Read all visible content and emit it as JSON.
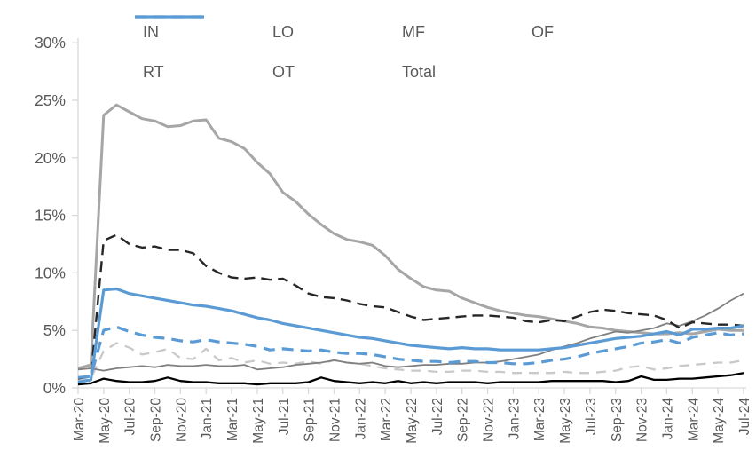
{
  "chart_data": {
    "type": "line",
    "title": "",
    "xlabel": "",
    "ylabel": "",
    "ylim": [
      0,
      30
    ],
    "grid": false,
    "legend_position": "top",
    "axis_color": "#D9D9D9",
    "tick_label_color": "#595959",
    "y_ticks": [
      "0%",
      "5%",
      "10%",
      "15%",
      "20%",
      "25%",
      "30%"
    ],
    "x_tick_labels": [
      "Mar-20",
      "May-20",
      "Jul-20",
      "Sep-20",
      "Nov-20",
      "Jan-21",
      "Mar-21",
      "May-21",
      "Jul-21",
      "Sep-21",
      "Nov-21",
      "Jan-22",
      "Mar-22",
      "May-22",
      "Jul-22",
      "Sep-22",
      "Nov-22",
      "Jan-23",
      "Mar-23",
      "May-23",
      "Jul-23",
      "Sep-23",
      "Nov-23",
      "Jan-24",
      "Mar-24",
      "May-24",
      "Jul-24"
    ],
    "label_every": 2,
    "x": [
      "Mar-20",
      "Apr-20",
      "May-20",
      "Jun-20",
      "Jul-20",
      "Aug-20",
      "Sep-20",
      "Oct-20",
      "Nov-20",
      "Dec-20",
      "Jan-21",
      "Feb-21",
      "Mar-21",
      "Apr-21",
      "May-21",
      "Jun-21",
      "Jul-21",
      "Aug-21",
      "Sep-21",
      "Oct-21",
      "Nov-21",
      "Dec-21",
      "Jan-22",
      "Feb-22",
      "Mar-22",
      "Apr-22",
      "May-22",
      "Jun-22",
      "Jul-22",
      "Aug-22",
      "Sep-22",
      "Oct-22",
      "Nov-22",
      "Dec-22",
      "Jan-23",
      "Feb-23",
      "Mar-23",
      "Apr-23",
      "May-23",
      "Jun-23",
      "Jul-23",
      "Aug-23",
      "Sep-23",
      "Oct-23",
      "Nov-23",
      "Dec-23",
      "Jan-24",
      "Feb-24",
      "Mar-24",
      "Apr-24",
      "May-24",
      "Jun-24",
      "Jul-24"
    ],
    "series": [
      {
        "name": "IN",
        "color": "#000000",
        "style": "solid",
        "width": 2.3,
        "dash": "",
        "values": [
          0.3,
          0.4,
          0.8,
          0.6,
          0.5,
          0.5,
          0.6,
          0.9,
          0.6,
          0.5,
          0.5,
          0.4,
          0.4,
          0.4,
          0.3,
          0.4,
          0.4,
          0.4,
          0.5,
          0.9,
          0.6,
          0.5,
          0.4,
          0.5,
          0.4,
          0.6,
          0.4,
          0.5,
          0.4,
          0.5,
          0.5,
          0.5,
          0.4,
          0.5,
          0.5,
          0.5,
          0.5,
          0.6,
          0.6,
          0.6,
          0.6,
          0.6,
          0.5,
          0.6,
          1.0,
          0.7,
          0.7,
          0.8,
          0.8,
          0.9,
          1.0,
          1.1,
          1.3
        ]
      },
      {
        "name": "LO",
        "color": "#A6A6A6",
        "style": "solid",
        "width": 3,
        "dash": "",
        "values": [
          1.7,
          2.0,
          23.7,
          24.6,
          24.0,
          23.4,
          23.2,
          22.7,
          22.8,
          23.2,
          23.3,
          21.7,
          21.4,
          20.8,
          19.6,
          18.6,
          17.0,
          16.2,
          15.1,
          14.2,
          13.4,
          12.9,
          12.7,
          12.4,
          11.5,
          10.3,
          9.5,
          8.8,
          8.5,
          8.4,
          7.8,
          7.4,
          7.0,
          6.7,
          6.5,
          6.3,
          6.2,
          6.0,
          5.8,
          5.6,
          5.3,
          5.2,
          5.0,
          4.9,
          4.8,
          4.7,
          4.7,
          4.8,
          4.7,
          4.9,
          5.1,
          5.0,
          5.0
        ]
      },
      {
        "name": "MF",
        "color": "#C9C9C9",
        "style": "dashed",
        "width": 2.3,
        "dash": "11 8",
        "values": [
          0.6,
          0.8,
          3.2,
          3.9,
          3.5,
          2.9,
          3.1,
          3.4,
          2.6,
          2.5,
          3.4,
          2.4,
          2.6,
          2.2,
          2.4,
          2.1,
          2.2,
          2.1,
          2.3,
          2.1,
          2.4,
          2.2,
          2.1,
          1.9,
          1.7,
          1.6,
          1.5,
          1.5,
          1.4,
          1.4,
          1.5,
          1.5,
          1.4,
          1.4,
          1.3,
          1.3,
          1.3,
          1.3,
          1.4,
          1.3,
          1.3,
          1.4,
          1.5,
          1.8,
          1.9,
          1.6,
          1.7,
          1.9,
          2.0,
          2.1,
          2.2,
          2.2,
          2.4
        ]
      },
      {
        "name": "OF",
        "color": "#7F7F7F",
        "style": "solid",
        "width": 1.8,
        "dash": "",
        "values": [
          1.6,
          1.7,
          1.5,
          1.7,
          1.8,
          1.9,
          1.8,
          2.0,
          1.9,
          1.9,
          2.0,
          1.9,
          1.9,
          2.0,
          1.6,
          1.7,
          1.8,
          2.0,
          2.1,
          2.2,
          2.4,
          2.2,
          2.1,
          2.2,
          1.9,
          1.8,
          1.9,
          2.0,
          2.0,
          2.1,
          2.1,
          2.2,
          2.2,
          2.3,
          2.5,
          2.7,
          2.9,
          3.3,
          3.6,
          3.9,
          4.3,
          4.6,
          4.9,
          4.8,
          5.0,
          5.2,
          5.6,
          5.4,
          5.8,
          6.3,
          6.9,
          7.6,
          8.2
        ]
      },
      {
        "name": "RT",
        "color": "#262626",
        "style": "dashed",
        "width": 2.4,
        "dash": "12 7",
        "values": [
          0.8,
          1.0,
          12.8,
          13.3,
          12.5,
          12.2,
          12.3,
          12.0,
          12.0,
          11.7,
          10.6,
          10.0,
          9.6,
          9.5,
          9.6,
          9.4,
          9.5,
          8.9,
          8.2,
          7.9,
          7.8,
          7.6,
          7.3,
          7.1,
          7.0,
          6.6,
          6.2,
          5.9,
          6.0,
          6.1,
          6.2,
          6.3,
          6.3,
          6.2,
          6.1,
          5.8,
          5.7,
          5.9,
          5.8,
          6.2,
          6.6,
          6.8,
          6.7,
          6.5,
          6.4,
          6.3,
          5.9,
          5.2,
          5.7,
          5.6,
          5.5,
          5.5,
          5.4
        ]
      },
      {
        "name": "OT",
        "color": "#5B9BD5",
        "style": "dashed",
        "width": 3.2,
        "dash": "13 8",
        "values": [
          0.9,
          1.0,
          5.0,
          5.3,
          4.9,
          4.6,
          4.4,
          4.3,
          4.1,
          4.0,
          4.2,
          4.0,
          3.9,
          3.8,
          3.6,
          3.3,
          3.4,
          3.3,
          3.2,
          3.3,
          3.1,
          3.0,
          3.0,
          2.9,
          2.7,
          2.5,
          2.4,
          2.3,
          2.3,
          2.2,
          2.3,
          2.3,
          2.2,
          2.2,
          2.1,
          2.1,
          2.2,
          2.4,
          2.5,
          2.7,
          3.0,
          3.2,
          3.4,
          3.6,
          3.9,
          4.0,
          4.2,
          3.9,
          4.4,
          4.6,
          4.8,
          4.6,
          4.7
        ]
      },
      {
        "name": "Total",
        "color": "#5B9BD5",
        "style": "solid",
        "width": 3.2,
        "dash": "",
        "values": [
          0.5,
          0.7,
          8.5,
          8.6,
          8.2,
          8.0,
          7.8,
          7.6,
          7.4,
          7.2,
          7.1,
          6.9,
          6.7,
          6.4,
          6.1,
          5.9,
          5.6,
          5.4,
          5.2,
          5.0,
          4.8,
          4.6,
          4.4,
          4.3,
          4.1,
          3.9,
          3.7,
          3.6,
          3.5,
          3.4,
          3.5,
          3.4,
          3.4,
          3.3,
          3.3,
          3.3,
          3.3,
          3.4,
          3.5,
          3.7,
          3.9,
          4.1,
          4.3,
          4.4,
          4.5,
          4.7,
          4.9,
          4.6,
          5.1,
          5.1,
          5.2,
          5.2,
          5.4
        ]
      }
    ]
  }
}
